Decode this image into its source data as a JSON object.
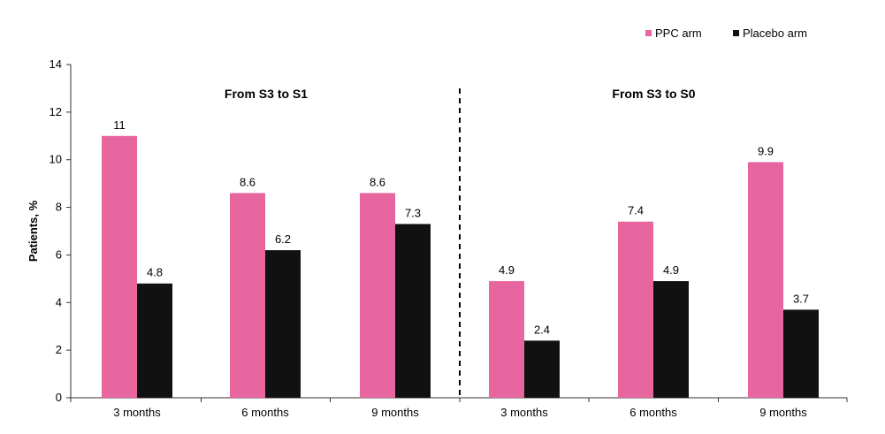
{
  "chart_data": {
    "type": "bar",
    "title": "",
    "xlabel": "",
    "ylabel": "Patients, %",
    "ylim": [
      0,
      14
    ],
    "yticks": [
      0,
      2,
      4,
      6,
      8,
      10,
      12,
      14
    ],
    "grid": false,
    "legend_position": "top-right",
    "categories": [
      "3 months",
      "6 months",
      "9 months",
      "3 months",
      "6 months",
      "9 months"
    ],
    "groups": [
      {
        "title": "From S3 to S1",
        "categories": [
          0,
          1,
          2
        ]
      },
      {
        "title": "From S3 to S0",
        "categories": [
          3,
          4,
          5
        ]
      }
    ],
    "series": [
      {
        "name": "PPC arm",
        "color": "#e8669f",
        "values": [
          11,
          8.6,
          8.6,
          4.9,
          7.4,
          9.9
        ],
        "labels": [
          "11",
          "8.6",
          "8.6",
          "4.9",
          "7.4",
          "9.9"
        ]
      },
      {
        "name": "Placebo arm",
        "color": "#111111",
        "values": [
          4.8,
          6.2,
          7.3,
          2.4,
          4.9,
          3.7
        ],
        "labels": [
          "4.8",
          "6.2",
          "7.3",
          "2.4",
          "4.9",
          "3.7"
        ]
      }
    ]
  }
}
